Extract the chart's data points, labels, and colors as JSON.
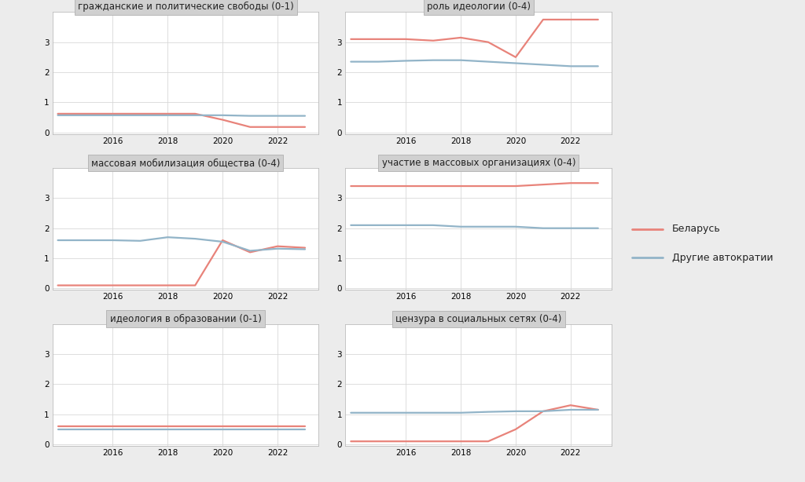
{
  "years": [
    2014,
    2015,
    2016,
    2017,
    2018,
    2019,
    2020,
    2021,
    2022,
    2023
  ],
  "panels": [
    {
      "title": "гражданские и политические свободы (0-1)",
      "belarus": [
        0.62,
        0.62,
        0.62,
        0.62,
        0.62,
        0.62,
        0.42,
        0.18,
        0.18,
        0.18
      ],
      "others": [
        0.57,
        0.57,
        0.57,
        0.57,
        0.57,
        0.57,
        0.57,
        0.55,
        0.55,
        0.55
      ],
      "ylim": [
        -0.05,
        4.0
      ],
      "yticks": [
        0,
        1,
        2,
        3
      ]
    },
    {
      "title": "роль идеологии (0-4)",
      "belarus": [
        3.1,
        3.1,
        3.1,
        3.05,
        3.15,
        3.0,
        2.5,
        3.75,
        3.75,
        3.75
      ],
      "others": [
        2.35,
        2.35,
        2.38,
        2.4,
        2.4,
        2.35,
        2.3,
        2.25,
        2.2,
        2.2
      ],
      "ylim": [
        -0.05,
        4.0
      ],
      "yticks": [
        0,
        1,
        2,
        3
      ]
    },
    {
      "title": "массовая мобилизация общества (0-4)",
      "belarus": [
        0.1,
        0.1,
        0.1,
        0.1,
        0.1,
        0.1,
        1.6,
        1.2,
        1.4,
        1.35
      ],
      "others": [
        1.6,
        1.6,
        1.6,
        1.58,
        1.7,
        1.65,
        1.55,
        1.25,
        1.32,
        1.3
      ],
      "ylim": [
        -0.05,
        4.0
      ],
      "yticks": [
        0,
        1,
        2,
        3
      ]
    },
    {
      "title": "участие в массовых организациях (0-4)",
      "belarus": [
        3.4,
        3.4,
        3.4,
        3.4,
        3.4,
        3.4,
        3.4,
        3.45,
        3.5,
        3.5
      ],
      "others": [
        2.1,
        2.1,
        2.1,
        2.1,
        2.05,
        2.05,
        2.05,
        2.0,
        2.0,
        2.0
      ],
      "ylim": [
        -0.05,
        4.0
      ],
      "yticks": [
        0,
        1,
        2,
        3
      ]
    },
    {
      "title": "идеология в образовании (0-1)",
      "belarus": [
        0.6,
        0.6,
        0.6,
        0.6,
        0.6,
        0.6,
        0.6,
        0.6,
        0.6,
        0.6
      ],
      "others": [
        0.5,
        0.5,
        0.5,
        0.5,
        0.5,
        0.5,
        0.5,
        0.5,
        0.5,
        0.5
      ],
      "ylim": [
        -0.05,
        4.0
      ],
      "yticks": [
        0,
        1,
        2,
        3
      ]
    },
    {
      "title": "цензура в социальных сетях (0-4)",
      "belarus": [
        0.1,
        0.1,
        0.1,
        0.1,
        0.1,
        0.1,
        0.5,
        1.1,
        1.3,
        1.15
      ],
      "others": [
        1.05,
        1.05,
        1.05,
        1.05,
        1.05,
        1.08,
        1.1,
        1.1,
        1.15,
        1.15
      ],
      "ylim": [
        -0.05,
        4.0
      ],
      "yticks": [
        0,
        1,
        2,
        3
      ]
    }
  ],
  "color_belarus": "#e8837a",
  "color_others": "#92b4c8",
  "legend_labels": [
    "Беларусь",
    "Другие автократии"
  ],
  "bg_color": "#ececec",
  "panel_bg": "#ffffff",
  "title_bg": "#d0d0d0",
  "grid_color": "#d8d8d8",
  "line_width": 1.6,
  "title_fontsize": 8.5,
  "tick_fontsize": 7.5,
  "legend_fontsize": 9
}
